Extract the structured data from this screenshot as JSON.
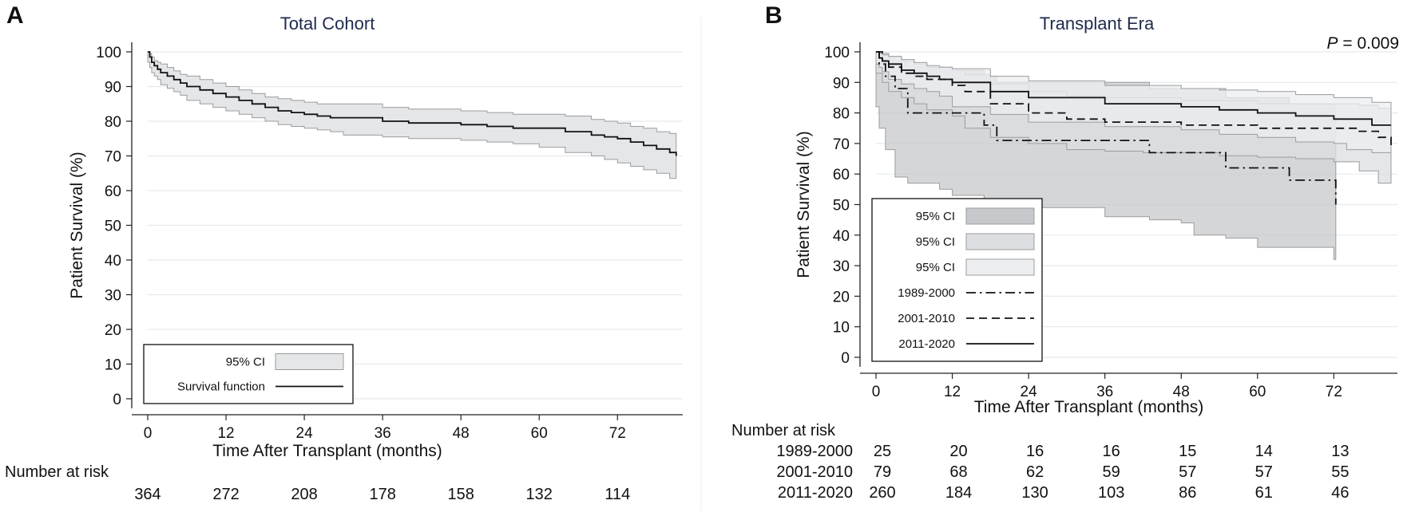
{
  "chart_data": [
    {
      "panel": "A",
      "type": "line",
      "title": "Total Cohort",
      "xlabel": "Time After Transplant (months)",
      "ylabel": "Patient Survival (%)",
      "xlim": [
        0,
        82
      ],
      "ylim": [
        0,
        100
      ],
      "xticks": [
        0,
        12,
        24,
        36,
        48,
        60,
        72
      ],
      "yticks": [
        0,
        10,
        20,
        30,
        40,
        50,
        60,
        70,
        80,
        90,
        100
      ],
      "legend": {
        "position": "bottom-left",
        "entries": [
          {
            "label": "95% CI",
            "kind": "band",
            "color": "#e4e6e8"
          },
          {
            "label": "Survival function",
            "kind": "line",
            "dash": "solid"
          }
        ]
      },
      "series": [
        {
          "name": "Survival function",
          "color": "#111111",
          "dash": "solid",
          "x": [
            0,
            0.3,
            0.6,
            1,
            1.5,
            2,
            3,
            4,
            5,
            6,
            8,
            10,
            12,
            14,
            16,
            18,
            20,
            22,
            24,
            26,
            28,
            30,
            36,
            40,
            48,
            52,
            56,
            60,
            64,
            68,
            70,
            72,
            74,
            76,
            78,
            80,
            81
          ],
          "y": [
            100,
            98.5,
            97,
            96,
            95,
            94,
            93,
            92,
            91,
            90,
            89,
            88,
            87,
            86,
            85,
            84,
            83,
            82.5,
            82,
            81.5,
            81,
            81,
            80,
            79.5,
            79,
            78.5,
            78,
            78,
            77,
            76,
            75.5,
            75,
            74,
            73,
            72,
            71,
            70
          ],
          "ci_upper": [
            100,
            99.5,
            98.5,
            97.5,
            97,
            96.5,
            95.5,
            94.5,
            93.5,
            93,
            92,
            91,
            90,
            89,
            88,
            87,
            86.5,
            86,
            85.5,
            85,
            85,
            85,
            84,
            83.5,
            83,
            82.5,
            82,
            82,
            81.5,
            80.5,
            80,
            79.5,
            78.5,
            78,
            77,
            76.5,
            76
          ],
          "ci_lower": [
            100,
            97,
            95.5,
            94,
            93,
            92,
            90.5,
            89.5,
            88.5,
            87.5,
            86,
            85,
            84,
            83,
            82,
            81,
            80,
            79,
            78.5,
            78,
            77.5,
            77,
            76,
            75.5,
            75,
            74.5,
            74,
            73.5,
            72.5,
            71,
            70,
            69,
            68,
            67,
            66,
            65,
            63.5
          ]
        }
      ],
      "risk_table": {
        "heading": "Number at risk",
        "times": [
          0,
          12,
          24,
          36,
          48,
          60,
          72
        ],
        "rows": [
          {
            "label": "",
            "counts": [
              "364",
              "272",
              "208",
              "178",
              "158",
              "132",
              "114"
            ]
          }
        ]
      }
    },
    {
      "panel": "B",
      "type": "line",
      "title": "Transplant Era",
      "annotation": {
        "italic": "P",
        "text": " = 0.009"
      },
      "xlabel": "Time After Transplant (months)",
      "ylabel": "Patient Survival (%)",
      "xlim": [
        0,
        82
      ],
      "ylim": [
        0,
        100
      ],
      "xticks": [
        0,
        12,
        24,
        36,
        48,
        60,
        72
      ],
      "yticks": [
        0,
        10,
        20,
        30,
        40,
        50,
        60,
        70,
        80,
        90,
        100
      ],
      "legend": {
        "position": "bottom-left",
        "entries": [
          {
            "label": "95% CI",
            "kind": "band",
            "color": "#c6c8cb"
          },
          {
            "label": "95% CI",
            "kind": "band",
            "color": "#dcdee1"
          },
          {
            "label": "95% CI",
            "kind": "band",
            "color": "#eceef0"
          },
          {
            "label": "1989-2000",
            "kind": "line",
            "dash": "dashdot"
          },
          {
            "label": "2001-2010",
            "kind": "line",
            "dash": "dash"
          },
          {
            "label": "2011-2020",
            "kind": "line",
            "dash": "solid"
          }
        ]
      },
      "series": [
        {
          "name": "1989-2000",
          "color": "#111111",
          "dash": "dashdot",
          "band_color": "#c6c8cb",
          "x": [
            0,
            0.5,
            1.5,
            3,
            5,
            10,
            12,
            17,
            19,
            24,
            36,
            43,
            48,
            50,
            55,
            60,
            65,
            70,
            72,
            72.3
          ],
          "y": [
            100,
            96,
            92,
            88,
            80,
            80,
            80,
            76,
            71,
            71,
            71,
            67,
            67,
            67,
            62,
            62,
            58,
            58,
            58,
            50
          ],
          "ci_upper": [
            100,
            99,
            98,
            97,
            95,
            94,
            94,
            92,
            90,
            90,
            90,
            88,
            88,
            88,
            85,
            85,
            83,
            83,
            83,
            80
          ],
          "ci_lower": [
            100,
            82,
            75,
            68,
            59,
            57,
            55,
            53,
            50,
            49,
            49,
            46,
            45,
            44,
            40,
            39,
            36,
            36,
            36,
            32
          ]
        },
        {
          "name": "2001-2010",
          "color": "#111111",
          "dash": "dash",
          "band_color": "#dcdee1",
          "x": [
            0,
            1,
            2,
            4,
            6,
            8,
            12,
            14,
            18,
            24,
            30,
            36,
            42,
            48,
            54,
            60,
            66,
            72,
            76,
            79,
            81
          ],
          "y": [
            100,
            97,
            95,
            93,
            92,
            91,
            89,
            87,
            83,
            80,
            78,
            77,
            77,
            76,
            76,
            75,
            75,
            75,
            74,
            72,
            69
          ],
          "ci_upper": [
            100,
            99.5,
            98.5,
            97,
            96,
            95,
            94,
            92.5,
            89.5,
            87,
            85.5,
            85,
            85,
            84,
            84,
            83,
            83,
            83,
            82.5,
            81.5,
            80
          ],
          "ci_lower": [
            100,
            93,
            90,
            87,
            85,
            83,
            81,
            79,
            75,
            72,
            70,
            68,
            67.5,
            67,
            67,
            66,
            65.5,
            65,
            64,
            61,
            57
          ]
        },
        {
          "name": "2011-2020",
          "color": "#111111",
          "dash": "solid",
          "band_color": "#eceef0",
          "x": [
            0,
            0.5,
            1,
            2,
            4,
            6,
            8,
            10,
            12,
            18,
            24,
            36,
            48,
            54,
            60,
            66,
            72,
            74,
            78,
            81
          ],
          "y": [
            100,
            98,
            97,
            96,
            94,
            93,
            92,
            91,
            90,
            87,
            85,
            83,
            82,
            81,
            80,
            79,
            78,
            78,
            76,
            76
          ],
          "ci_upper": [
            100,
            99.5,
            99,
            98.5,
            97.5,
            96.5,
            95.5,
            95,
            94.5,
            92,
            90.5,
            89,
            88,
            87.5,
            87,
            86,
            85,
            85,
            83.5,
            83.5
          ],
          "ci_lower": [
            100,
            96,
            95,
            93.5,
            91,
            89.5,
            88,
            87,
            85.5,
            82,
            79.5,
            77,
            75.5,
            74.5,
            73,
            72,
            70.5,
            70,
            68,
            67
          ]
        }
      ],
      "risk_table": {
        "heading": "Number at risk",
        "times": [
          0,
          12,
          24,
          36,
          48,
          60,
          72
        ],
        "rows": [
          {
            "label": "1989-2000",
            "counts": [
              "25",
              "20",
              "16",
              "16",
              "15",
              "14",
              "13"
            ]
          },
          {
            "label": "2001-2010",
            "counts": [
              "79",
              "68",
              "62",
              "59",
              "57",
              "57",
              "55"
            ]
          },
          {
            "label": "2011-2020",
            "counts": [
              "260",
              "184",
              "130",
              "103",
              "86",
              "61",
              "46"
            ]
          }
        ]
      }
    }
  ]
}
